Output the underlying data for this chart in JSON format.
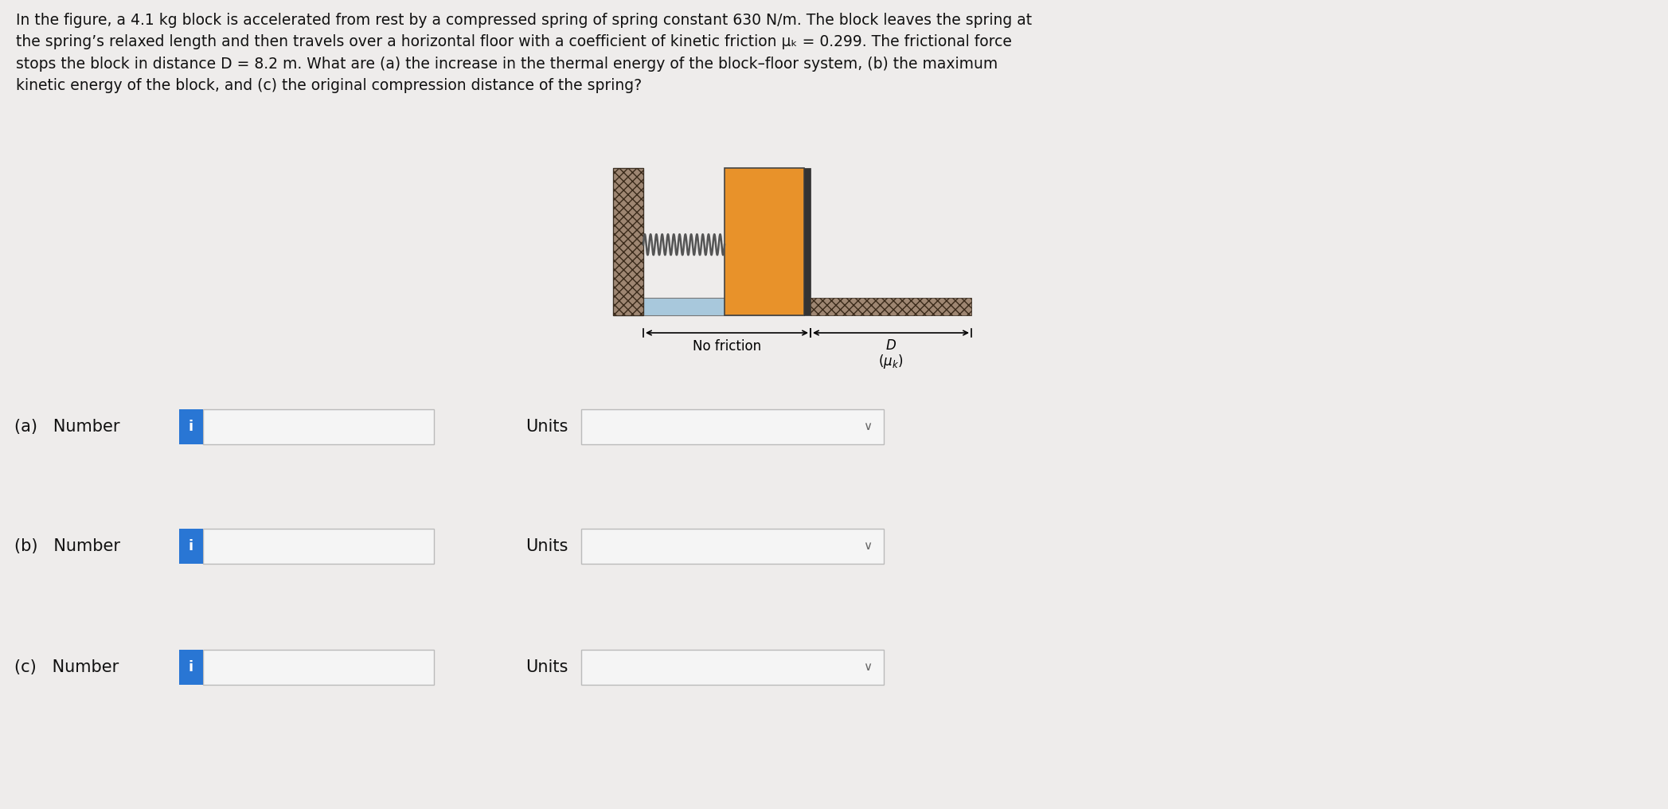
{
  "title_text": "In the figure, a 4.1 kg block is accelerated from rest by a compressed spring of spring constant 630 N/m. The block leaves the spring at\nthe spring’s relaxed length and then travels over a horizontal floor with a coefficient of kinetic friction μₖ = 0.299. The frictional force\nstops the block in distance D = 8.2 m. What are (a) the increase in the thermal energy of the block–floor system, (b) the maximum\nkinetic energy of the block, and (c) the original compression distance of the spring?",
  "title_fontsize": 13.5,
  "bg_color": "#eeeceb",
  "info_icon_color": "#2976d4",
  "input_box_color": "#f5f5f5",
  "input_box_border": "#bbbbbb",
  "dropdown_box_color": "#f5f5f5",
  "dropdown_box_border": "#bbbbbb",
  "wall_hatch_color": "#9e8672",
  "spring_color": "#555555",
  "block_color": "#E8922A",
  "floor_color": "#a8c8dc",
  "friction_color": "#9e8672",
  "units_label": "Units",
  "part_labels": [
    "(a)   Number",
    "(b)   Number",
    "(c)   Number"
  ]
}
